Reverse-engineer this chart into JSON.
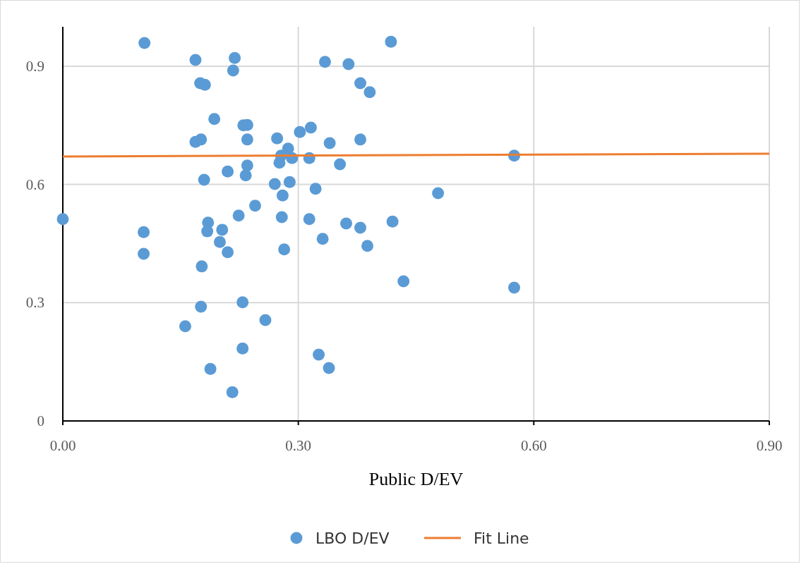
{
  "chart_data": {
    "type": "scatter",
    "xlabel": "Public D/EV",
    "xlim": [
      0,
      0.9
    ],
    "xticks": [
      {
        "value": 0,
        "label": "0.00"
      },
      {
        "value": 0.3,
        "label": "0.30"
      },
      {
        "value": 0.6,
        "label": "0.60"
      },
      {
        "value": 0.9,
        "label": "0.90"
      }
    ],
    "ylim": [
      0,
      1
    ],
    "yticks": [
      0,
      0.3,
      0.6,
      0.9
    ],
    "grid": true,
    "legend": "bottom",
    "series": [
      {
        "name": "LBO D/EV",
        "marker": "circle",
        "color": "#5b9bd5",
        "x": [
          0.104,
          0.169,
          0.219,
          0.217,
          0.334,
          0.364,
          0.418,
          0.175,
          0.181,
          0.379,
          0.391,
          0.193,
          0.23,
          0.235,
          0.169,
          0.176,
          0.235,
          0.273,
          0.302,
          0.316,
          0.34,
          0.379,
          0.287,
          0.278,
          0.292,
          0.276,
          0.314,
          0.353,
          0.575,
          0.235,
          0.21,
          0.233,
          0.18,
          0.27,
          0.289,
          0.322,
          0.28,
          0.478,
          0.0,
          0.103,
          0.103,
          0.185,
          0.184,
          0.203,
          0.2,
          0.21,
          0.224,
          0.245,
          0.279,
          0.314,
          0.361,
          0.379,
          0.42,
          0.331,
          0.282,
          0.388,
          0.177,
          0.434,
          0.575,
          0.176,
          0.229,
          0.156,
          0.258,
          0.229,
          0.326,
          0.188,
          0.339,
          0.216
        ],
        "values": [
          0.959,
          0.916,
          0.921,
          0.889,
          0.911,
          0.905,
          0.962,
          0.857,
          0.853,
          0.857,
          0.834,
          0.766,
          0.75,
          0.751,
          0.708,
          0.714,
          0.714,
          0.717,
          0.733,
          0.744,
          0.705,
          0.714,
          0.691,
          0.673,
          0.667,
          0.655,
          0.667,
          0.651,
          0.673,
          0.648,
          0.633,
          0.623,
          0.612,
          0.601,
          0.606,
          0.589,
          0.572,
          0.578,
          0.512,
          0.479,
          0.424,
          0.503,
          0.481,
          0.485,
          0.454,
          0.428,
          0.521,
          0.546,
          0.517,
          0.512,
          0.501,
          0.49,
          0.506,
          0.462,
          0.435,
          0.444,
          0.392,
          0.354,
          0.338,
          0.29,
          0.301,
          0.24,
          0.256,
          0.184,
          0.168,
          0.132,
          0.134,
          0.073
        ]
      },
      {
        "name": "Fit Line",
        "type": "line",
        "color": "#ed7d31",
        "x": [
          0,
          0.9
        ],
        "values": [
          0.671,
          0.678
        ]
      }
    ]
  }
}
